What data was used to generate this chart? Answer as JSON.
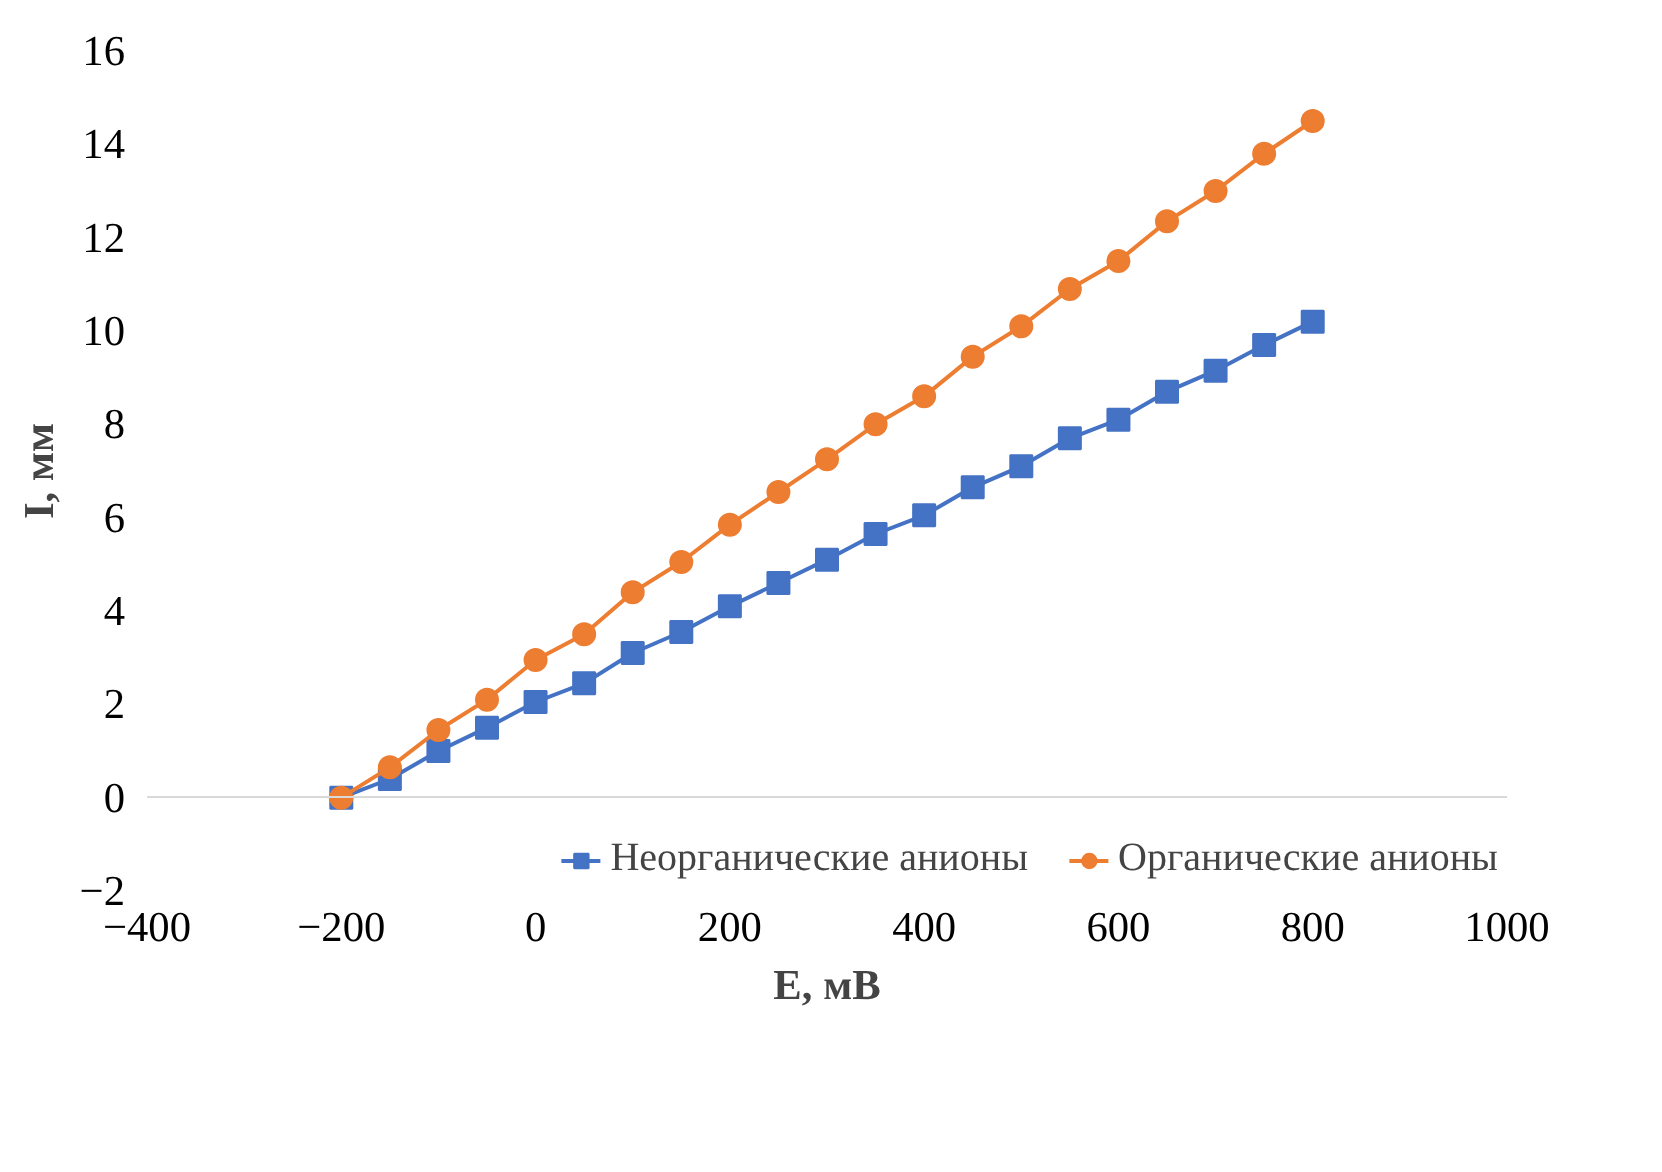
{
  "chart_data": {
    "type": "line",
    "xlabel": "E, мВ",
    "ylabel": "I, мм",
    "xlim": [
      -400,
      1000
    ],
    "xticks": [
      -400,
      -200,
      0,
      200,
      400,
      600,
      800,
      1000
    ],
    "ylim": [
      -2,
      16
    ],
    "yticks": [
      -2,
      0,
      2,
      4,
      6,
      8,
      10,
      12,
      14,
      16
    ],
    "grid": false,
    "legend": "bottom",
    "line_style": "solid",
    "x": [
      -200,
      -150,
      -100,
      -50,
      0,
      50,
      100,
      150,
      200,
      250,
      300,
      350,
      400,
      450,
      500,
      550,
      600,
      650,
      700,
      750,
      800
    ],
    "series": [
      {
        "name": "Неорганические анионы",
        "color": "#4472c4",
        "marker": "square",
        "values": [
          0,
          0.4,
          1.0,
          1.5,
          2.05,
          2.45,
          3.1,
          3.55,
          4.1,
          4.6,
          5.1,
          5.65,
          6.05,
          6.65,
          7.1,
          7.7,
          8.1,
          8.7,
          9.15,
          9.7,
          10.2
        ]
      },
      {
        "name": "Органические анионы",
        "color": "#ed7d31",
        "marker": "circle",
        "values": [
          0,
          0.65,
          1.45,
          2.1,
          2.95,
          3.5,
          4.4,
          5.05,
          5.85,
          6.55,
          7.25,
          8.0,
          8.6,
          9.45,
          10.1,
          10.9,
          11.5,
          12.35,
          13.0,
          13.8,
          14.5
        ]
      }
    ]
  }
}
